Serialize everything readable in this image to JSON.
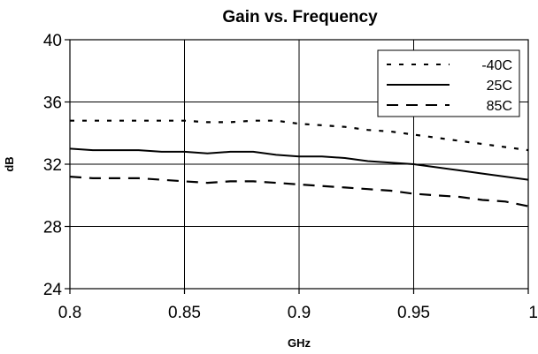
{
  "chart_data": {
    "type": "line",
    "title": "Gain vs. Frequency",
    "xlabel": "GHz",
    "ylabel": "dB",
    "xlim": [
      0.8,
      1.0
    ],
    "ylim": [
      24,
      40
    ],
    "x_ticks": [
      0.8,
      0.85,
      0.9,
      0.95,
      1.0
    ],
    "x_tick_labels": [
      "0.8",
      "0.85",
      "0.9",
      "0.95",
      "1"
    ],
    "y_ticks": [
      24,
      28,
      32,
      36,
      40
    ],
    "y_tick_labels": [
      "24",
      "28",
      "32",
      "36",
      "40"
    ],
    "grid": true,
    "legend_position": "top-right",
    "series": [
      {
        "name": "-40C",
        "style": "short-dash",
        "color": "#000000",
        "x": [
          0.8,
          0.81,
          0.82,
          0.83,
          0.84,
          0.85,
          0.86,
          0.87,
          0.88,
          0.89,
          0.9,
          0.91,
          0.92,
          0.93,
          0.94,
          0.95,
          0.96,
          0.97,
          0.98,
          0.99,
          1.0
        ],
        "y": [
          34.8,
          34.8,
          34.8,
          34.8,
          34.8,
          34.8,
          34.7,
          34.7,
          34.8,
          34.8,
          34.6,
          34.5,
          34.4,
          34.2,
          34.1,
          33.9,
          33.7,
          33.5,
          33.3,
          33.1,
          32.9
        ]
      },
      {
        "name": "25C",
        "style": "solid",
        "color": "#000000",
        "x": [
          0.8,
          0.81,
          0.82,
          0.83,
          0.84,
          0.85,
          0.86,
          0.87,
          0.88,
          0.89,
          0.9,
          0.91,
          0.92,
          0.93,
          0.94,
          0.95,
          0.96,
          0.97,
          0.98,
          0.99,
          1.0
        ],
        "y": [
          33.0,
          32.9,
          32.9,
          32.9,
          32.8,
          32.8,
          32.7,
          32.8,
          32.8,
          32.6,
          32.5,
          32.5,
          32.4,
          32.2,
          32.1,
          32.0,
          31.8,
          31.6,
          31.4,
          31.2,
          31.0
        ]
      },
      {
        "name": "85C",
        "style": "long-dash",
        "color": "#000000",
        "x": [
          0.8,
          0.81,
          0.82,
          0.83,
          0.84,
          0.85,
          0.86,
          0.87,
          0.88,
          0.89,
          0.9,
          0.91,
          0.92,
          0.93,
          0.94,
          0.95,
          0.96,
          0.97,
          0.98,
          0.99,
          1.0
        ],
        "y": [
          31.2,
          31.1,
          31.1,
          31.1,
          31.0,
          30.9,
          30.8,
          30.9,
          30.9,
          30.8,
          30.7,
          30.6,
          30.5,
          30.4,
          30.3,
          30.1,
          30.0,
          29.9,
          29.7,
          29.6,
          29.3
        ]
      }
    ]
  }
}
